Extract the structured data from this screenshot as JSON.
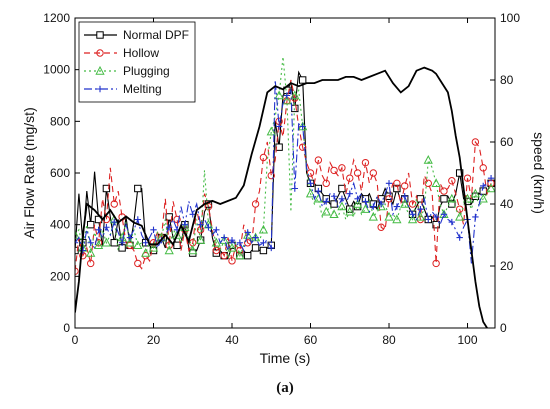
{
  "chart_data": {
    "type": "line",
    "title": "",
    "panel_label": "(a)",
    "xlabel": "Time (s)",
    "ylabel_left": "Air Flow Rate (mg/st)",
    "ylabel_right": "speed (km/h)",
    "xlim": [
      0,
      107
    ],
    "ylim_left": [
      0,
      1200
    ],
    "ylim_right": [
      0,
      100
    ],
    "x_ticks": [
      0,
      20,
      40,
      60,
      80,
      100
    ],
    "y_left_ticks": [
      0,
      200,
      400,
      600,
      800,
      1000,
      1200
    ],
    "y_right_ticks": [
      0,
      20,
      40,
      60,
      80,
      100
    ],
    "grid": false,
    "legend_position": "top-left",
    "series": [
      {
        "name": "Normal DPF",
        "color": "#000000",
        "marker": "square",
        "dash": "solid",
        "x": [
          0,
          1,
          2,
          3,
          4,
          5,
          6,
          7,
          8,
          9,
          10,
          11,
          12,
          13,
          14,
          15,
          16,
          17,
          18,
          19,
          20,
          21,
          22,
          23,
          24,
          25,
          26,
          27,
          28,
          29,
          30,
          31,
          32,
          33,
          34,
          35,
          36,
          37,
          38,
          39,
          40,
          41,
          42,
          43,
          44,
          45,
          46,
          47,
          48,
          49,
          50,
          51,
          52,
          53,
          54,
          55,
          56,
          57,
          58,
          59,
          60,
          61,
          62,
          63,
          64,
          65,
          66,
          67,
          68,
          69,
          70,
          71,
          72,
          73,
          74,
          75,
          76,
          77,
          78,
          79,
          80,
          81,
          82,
          83,
          84,
          85,
          86,
          87,
          88,
          89,
          90,
          91,
          92,
          93,
          94,
          95,
          96,
          97,
          98,
          99,
          100,
          101,
          102,
          103,
          104,
          105,
          106
        ],
        "y": [
          300,
          520,
          330,
          530,
          400,
          605,
          420,
          315,
          540,
          430,
          330,
          420,
          310,
          430,
          320,
          410,
          540,
          540,
          330,
          320,
          300,
          340,
          350,
          310,
          430,
          350,
          320,
          330,
          400,
          310,
          290,
          300,
          340,
          450,
          480,
          350,
          290,
          300,
          280,
          270,
          320,
          300,
          280,
          300,
          280,
          300,
          310,
          300,
          300,
          310,
          320,
          800,
          700,
          900,
          920,
          950,
          850,
          990,
          960,
          600,
          560,
          560,
          540,
          520,
          500,
          480,
          480,
          510,
          540,
          500,
          460,
          490,
          470,
          520,
          500,
          520,
          480,
          460,
          500,
          540,
          510,
          480,
          540,
          490,
          500,
          470,
          440,
          470,
          500,
          460,
          420,
          430,
          400,
          470,
          500,
          510,
          480,
          520,
          600,
          500,
          490,
          480,
          510,
          520,
          530,
          530,
          560
        ]
      },
      {
        "name": "Hollow",
        "color": "#dd2222",
        "marker": "circle",
        "dash": "6,4",
        "x": [
          0,
          1,
          2,
          3,
          4,
          5,
          6,
          7,
          8,
          9,
          10,
          11,
          12,
          13,
          14,
          15,
          16,
          17,
          18,
          19,
          20,
          21,
          22,
          23,
          24,
          25,
          26,
          27,
          28,
          29,
          30,
          31,
          32,
          33,
          34,
          35,
          36,
          37,
          38,
          39,
          40,
          41,
          42,
          43,
          44,
          45,
          46,
          47,
          48,
          49,
          50,
          51,
          52,
          53,
          54,
          55,
          56,
          57,
          58,
          59,
          60,
          61,
          62,
          63,
          64,
          65,
          66,
          67,
          68,
          69,
          70,
          71,
          72,
          73,
          74,
          75,
          76,
          77,
          78,
          79,
          80,
          81,
          82,
          83,
          84,
          85,
          86,
          87,
          88,
          89,
          90,
          91,
          92,
          93,
          94,
          95,
          96,
          97,
          98,
          99,
          100,
          101,
          102,
          103,
          104,
          105,
          106
        ],
        "y": [
          220,
          350,
          280,
          310,
          250,
          400,
          330,
          500,
          420,
          620,
          480,
          530,
          430,
          330,
          320,
          300,
          250,
          230,
          280,
          260,
          330,
          370,
          350,
          500,
          320,
          490,
          420,
          300,
          380,
          300,
          330,
          460,
          380,
          520,
          470,
          380,
          300,
          310,
          280,
          350,
          260,
          320,
          300,
          400,
          330,
          320,
          480,
          530,
          660,
          720,
          590,
          650,
          800,
          740,
          880,
          960,
          890,
          780,
          700,
          640,
          600,
          560,
          650,
          590,
          560,
          640,
          610,
          590,
          620,
          520,
          580,
          650,
          600,
          530,
          640,
          560,
          600,
          560,
          390,
          380,
          500,
          560,
          560,
          480,
          550,
          600,
          480,
          510,
          420,
          590,
          560,
          520,
          250,
          560,
          530,
          540,
          570,
          520,
          460,
          400,
          580,
          500,
          720,
          700,
          620,
          520,
          560
        ]
      },
      {
        "name": "Plugging",
        "color": "#44bb44",
        "marker": "triangle",
        "dash": "2,3",
        "x": [
          0,
          1,
          2,
          3,
          4,
          5,
          6,
          7,
          8,
          9,
          10,
          11,
          12,
          13,
          14,
          15,
          16,
          17,
          18,
          19,
          20,
          21,
          22,
          23,
          24,
          25,
          26,
          27,
          28,
          29,
          30,
          31,
          32,
          33,
          34,
          35,
          36,
          37,
          38,
          39,
          40,
          41,
          42,
          43,
          44,
          45,
          46,
          47,
          48,
          49,
          50,
          51,
          52,
          53,
          54,
          55,
          56,
          57,
          58,
          59,
          60,
          61,
          62,
          63,
          64,
          65,
          66,
          67,
          68,
          69,
          70,
          71,
          72,
          73,
          74,
          75,
          76,
          77,
          78,
          79,
          80,
          81,
          82,
          83,
          84,
          85,
          86,
          87,
          88,
          89,
          90,
          91,
          92,
          93,
          94,
          95,
          96,
          97,
          98,
          99,
          100,
          101,
          102,
          103,
          104,
          105,
          106
        ],
        "y": [
          360,
          380,
          310,
          400,
          290,
          370,
          320,
          380,
          330,
          360,
          420,
          300,
          350,
          410,
          330,
          380,
          320,
          330,
          290,
          330,
          310,
          370,
          350,
          420,
          300,
          380,
          360,
          330,
          390,
          350,
          300,
          420,
          340,
          610,
          400,
          380,
          330,
          300,
          340,
          270,
          310,
          330,
          280,
          320,
          360,
          330,
          350,
          340,
          380,
          650,
          760,
          820,
          900,
          1050,
          880,
          450,
          900,
          920,
          780,
          610,
          520,
          480,
          500,
          430,
          450,
          470,
          440,
          430,
          470,
          420,
          450,
          430,
          480,
          440,
          460,
          500,
          430,
          450,
          470,
          480,
          430,
          440,
          420,
          470,
          480,
          440,
          420,
          500,
          430,
          460,
          650,
          620,
          560,
          480,
          440,
          470,
          500,
          460,
          430,
          470,
          500,
          460,
          520,
          470,
          500,
          520,
          540
        ]
      },
      {
        "name": "Melting",
        "color": "#2233cc",
        "marker": "plus",
        "dash": "8,3,2,3",
        "x": [
          0,
          1,
          2,
          3,
          4,
          5,
          6,
          7,
          8,
          9,
          10,
          11,
          12,
          13,
          14,
          15,
          16,
          17,
          18,
          19,
          20,
          21,
          22,
          23,
          24,
          25,
          26,
          27,
          28,
          29,
          30,
          31,
          32,
          33,
          34,
          35,
          36,
          37,
          38,
          39,
          40,
          41,
          42,
          43,
          44,
          45,
          46,
          47,
          48,
          49,
          50,
          51,
          52,
          53,
          54,
          55,
          56,
          57,
          58,
          59,
          60,
          61,
          62,
          63,
          64,
          65,
          66,
          67,
          68,
          69,
          70,
          71,
          72,
          73,
          74,
          75,
          76,
          77,
          78,
          79,
          80,
          81,
          82,
          83,
          84,
          85,
          86,
          87,
          88,
          89,
          90,
          91,
          92,
          93,
          94,
          95,
          96,
          97,
          98,
          99,
          100,
          101,
          102,
          103,
          104,
          105,
          106
        ],
        "y": [
          330,
          350,
          300,
          380,
          330,
          310,
          380,
          350,
          390,
          360,
          410,
          370,
          330,
          400,
          350,
          380,
          420,
          360,
          330,
          350,
          380,
          310,
          340,
          360,
          390,
          420,
          380,
          470,
          400,
          490,
          440,
          480,
          400,
          420,
          390,
          360,
          380,
          330,
          350,
          300,
          340,
          320,
          330,
          300,
          370,
          330,
          350,
          320,
          330,
          340,
          310,
          960,
          780,
          870,
          900,
          920,
          540,
          790,
          780,
          620,
          560,
          500,
          530,
          470,
          490,
          520,
          510,
          470,
          500,
          480,
          520,
          560,
          500,
          520,
          490,
          450,
          470,
          510,
          480,
          520,
          560,
          440,
          470,
          500,
          510,
          470,
          440,
          420,
          460,
          500,
          420,
          450,
          430,
          400,
          440,
          420,
          410,
          380,
          350,
          390,
          420,
          250,
          430,
          480,
          550,
          560,
          580
        ]
      },
      {
        "name": "speed",
        "axis": "right",
        "color": "#000000",
        "marker": "none",
        "dash": "solid",
        "width": 1.8,
        "x": [
          0,
          1,
          2,
          3,
          5,
          7,
          9,
          11,
          13,
          15,
          17,
          19,
          21,
          23,
          25,
          27,
          29,
          31,
          33,
          35,
          37,
          39,
          41,
          43,
          45,
          47,
          49,
          51,
          53,
          55,
          57,
          59,
          61,
          63,
          65,
          67,
          69,
          71,
          73,
          75,
          77,
          79,
          81,
          83,
          85,
          87,
          89,
          91,
          92,
          93,
          94,
          95,
          96,
          97,
          98,
          99,
          100,
          101,
          102,
          103,
          104,
          105
        ],
        "y": [
          5,
          15,
          30,
          40,
          38,
          35,
          38,
          34,
          36,
          34,
          33,
          27,
          27,
          30,
          27,
          33,
          28,
          38,
          40,
          41,
          40,
          41,
          42,
          46,
          56,
          65,
          76,
          78,
          77,
          79,
          78,
          79,
          79,
          80,
          80,
          80,
          81,
          81,
          80,
          81,
          82,
          83,
          79,
          76,
          78,
          83,
          84,
          83,
          82,
          80,
          78,
          76,
          70,
          62,
          55,
          45,
          35,
          25,
          15,
          7,
          2,
          0
        ]
      }
    ]
  },
  "annotations": {
    "left_axis_scale": "left: 0-1200 mg/st",
    "right_axis_scale": "right: 0-100 km/h"
  }
}
